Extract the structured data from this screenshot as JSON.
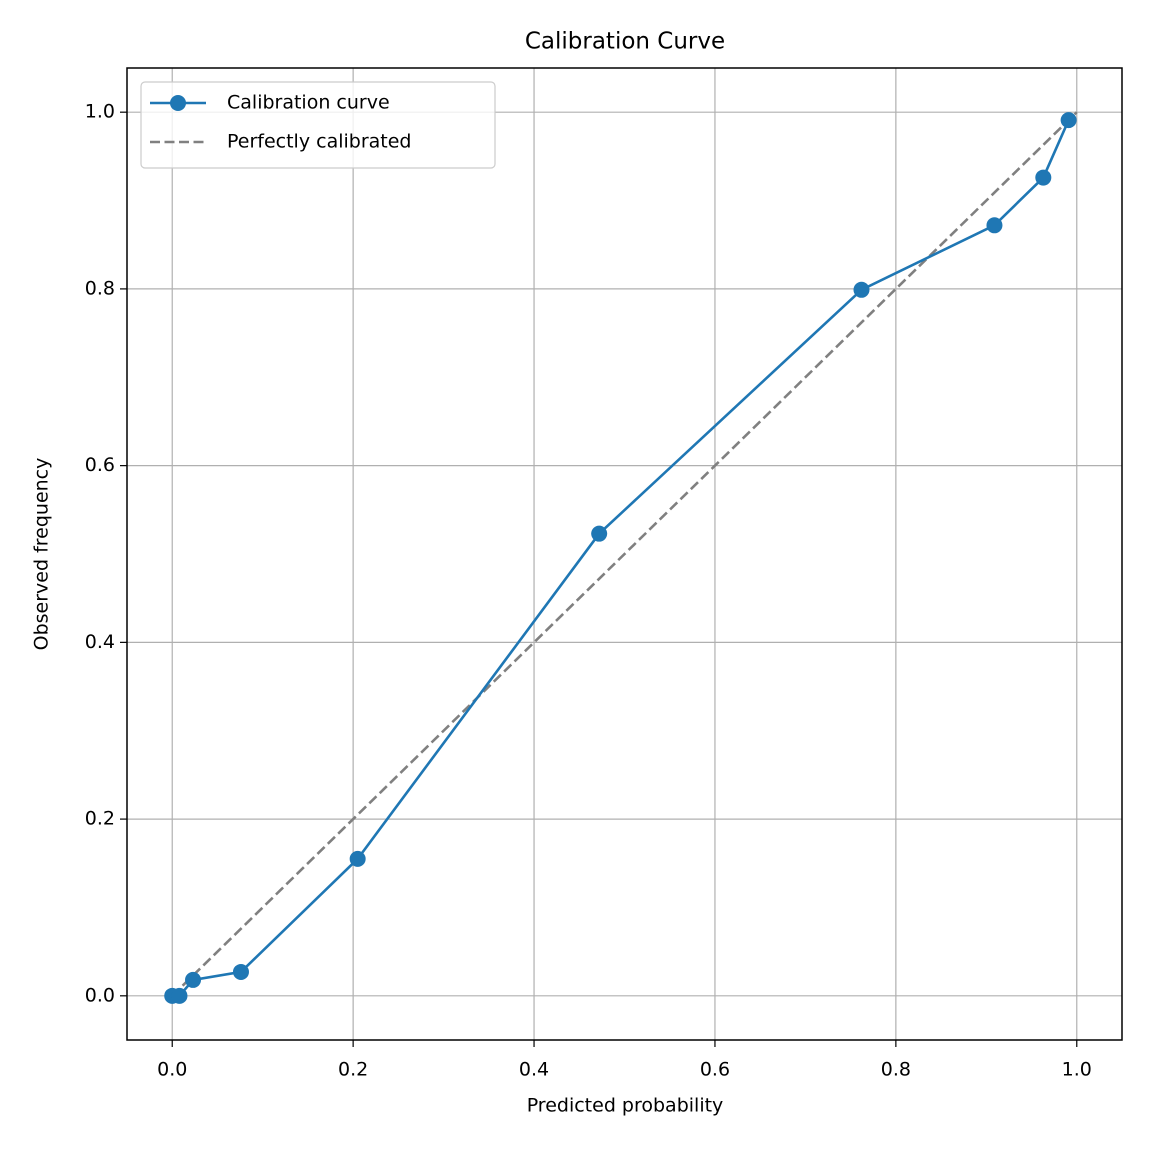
{
  "chart_data": {
    "type": "line",
    "title": "Calibration Curve",
    "x_label": "Predicted probability",
    "y_label": "Observed frequency",
    "xlim": [
      -0.05,
      1.05
    ],
    "ylim": [
      -0.05,
      1.05
    ],
    "xticks": [
      {
        "value": 0,
        "label": "0.0"
      },
      0.2,
      0.4,
      0.6,
      0.8,
      {
        "value": 1,
        "label": "1.0"
      }
    ],
    "yticks": [
      {
        "value": 0,
        "label": "0.0"
      },
      0.2,
      0.4,
      0.6,
      0.8,
      {
        "value": 1,
        "label": "1.0"
      }
    ],
    "grid": true,
    "legend": "upper left",
    "series": [
      {
        "name": "Calibration curve",
        "color": "#1f77b4",
        "style": "solid",
        "markers": true,
        "x": [
          0.0,
          0.008,
          0.023,
          0.076,
          0.205,
          0.472,
          0.762,
          0.909,
          0.963,
          0.991
        ],
        "values": [
          0.0,
          0.0,
          0.018,
          0.027,
          0.155,
          0.523,
          0.799,
          0.872,
          0.926,
          0.991
        ]
      },
      {
        "name": "Perfectly calibrated",
        "color": "#808080",
        "style": "dashed",
        "markers": false,
        "x": [
          0,
          1
        ],
        "values": [
          0,
          1
        ]
      }
    ]
  }
}
